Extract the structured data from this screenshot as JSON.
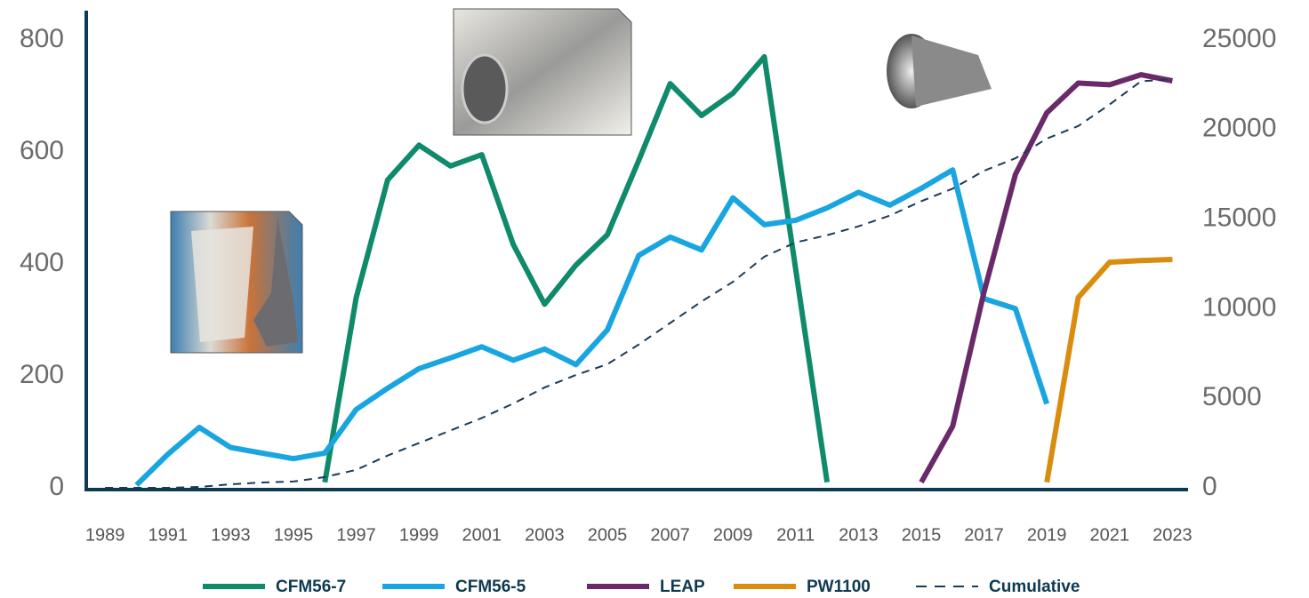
{
  "chart_data": {
    "type": "line",
    "x": [
      1989,
      1990,
      1991,
      1992,
      1993,
      1994,
      1995,
      1996,
      1997,
      1998,
      1999,
      2000,
      2001,
      2002,
      2003,
      2004,
      2005,
      2006,
      2007,
      2008,
      2009,
      2010,
      2011,
      2012,
      2013,
      2014,
      2015,
      2016,
      2017,
      2018,
      2019,
      2020,
      2021,
      2022,
      2023
    ],
    "xlim": [
      1988.4,
      2023.5
    ],
    "xticks": [
      1989,
      1991,
      1993,
      1995,
      1997,
      1999,
      2001,
      2003,
      2005,
      2007,
      2009,
      2011,
      2013,
      2015,
      2017,
      2019,
      2021,
      2023
    ],
    "ylim": [
      0,
      800
    ],
    "yticks": [
      0,
      200,
      400,
      600,
      800
    ],
    "y2lim": [
      0,
      25000
    ],
    "y2ticks": [
      0,
      5000,
      10000,
      15000,
      20000,
      25000
    ],
    "grid": false,
    "legend": "bottom",
    "series": [
      {
        "name": "CFM56-7",
        "color": "#0f8a6a",
        "values": [
          null,
          null,
          null,
          null,
          null,
          null,
          null,
          10,
          340,
          550,
          612,
          575,
          595,
          435,
          328,
          398,
          452,
          585,
          722,
          665,
          705,
          770,
          390,
          10,
          null,
          null,
          null,
          null,
          null,
          null,
          null,
          null,
          null,
          null,
          null
        ]
      },
      {
        "name": "CFM56-5",
        "color": "#18a5e0",
        "values": [
          null,
          5,
          60,
          108,
          72,
          62,
          52,
          62,
          140,
          178,
          213,
          232,
          252,
          228,
          248,
          220,
          282,
          415,
          448,
          425,
          518,
          470,
          478,
          500,
          528,
          505,
          535,
          568,
          338,
          320,
          150,
          null,
          null,
          null,
          null
        ]
      },
      {
        "name": "LEAP",
        "color": "#6a2a6a",
        "values": [
          null,
          null,
          null,
          null,
          null,
          null,
          null,
          null,
          null,
          null,
          null,
          null,
          null,
          null,
          null,
          null,
          null,
          null,
          null,
          null,
          null,
          null,
          null,
          null,
          null,
          null,
          10,
          110,
          350,
          560,
          670,
          723,
          720,
          738,
          727
        ]
      },
      {
        "name": "PW1100",
        "color": "#d98c0e",
        "values": [
          null,
          null,
          null,
          null,
          null,
          null,
          null,
          null,
          null,
          null,
          null,
          null,
          null,
          null,
          null,
          null,
          null,
          null,
          null,
          null,
          null,
          null,
          null,
          null,
          null,
          null,
          null,
          null,
          null,
          null,
          10,
          340,
          403,
          406,
          408
        ]
      },
      {
        "name": "Cumulative",
        "color": "#1b3a55",
        "dashed": true,
        "axis": "y2",
        "values": [
          0,
          0,
          0,
          50,
          200,
          300,
          350,
          600,
          1000,
          1800,
          2500,
          3200,
          3900,
          4700,
          5600,
          6300,
          6900,
          8000,
          9200,
          10400,
          11500,
          12900,
          13700,
          14100,
          14600,
          15200,
          16000,
          16700,
          17700,
          18400,
          19500,
          20200,
          21400,
          22700,
          22800
        ]
      }
    ]
  }
}
